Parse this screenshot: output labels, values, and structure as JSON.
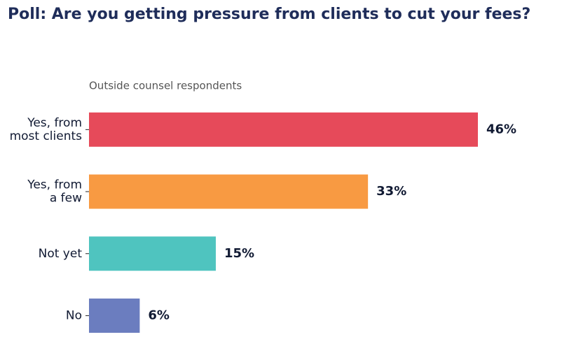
{
  "chart_data": {
    "type": "bar",
    "orientation": "horizontal",
    "title": "Poll: Are you getting pressure from clients to cut your fees?",
    "subtitle": "Outside counsel respondents",
    "categories": [
      [
        "Yes, from",
        "most clients"
      ],
      [
        "Yes, from",
        "a few"
      ],
      [
        "Not yet"
      ],
      [
        "No"
      ]
    ],
    "values": [
      46,
      33,
      15,
      6
    ],
    "value_labels": [
      "46%",
      "33%",
      "15%",
      "6%"
    ],
    "colors": [
      "#e64a5a",
      "#f89a42",
      "#4fc4bf",
      "#6b7dbf"
    ]
  }
}
